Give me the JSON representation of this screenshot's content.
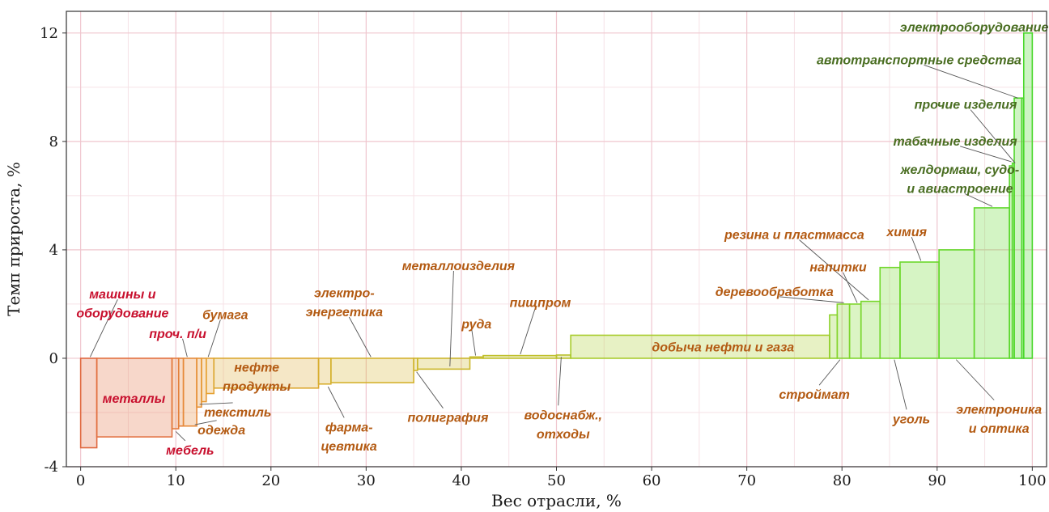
{
  "chart_data": {
    "type": "bar",
    "title": "",
    "xlabel": "Вес отрасли, %",
    "ylabel": "Темп прироста, %",
    "xlim": [
      -1.5,
      101.5
    ],
    "ylim": [
      -4,
      12.8
    ],
    "x_ticks": [
      "0",
      "10",
      "20",
      "30",
      "40",
      "50",
      "60",
      "70",
      "80",
      "90",
      "100"
    ],
    "y_ticks": [
      "-4",
      "0",
      "4",
      "8",
      "12"
    ],
    "grid": true,
    "bars": [
      {
        "name": "машины и оборудование",
        "x0": 0.0,
        "x1": 1.7,
        "value": -3.3,
        "color": "#e06840"
      },
      {
        "name": "металлы",
        "x0": 1.7,
        "x1": 9.6,
        "value": -2.9,
        "color": "#e27040"
      },
      {
        "name": "мебель",
        "x0": 9.6,
        "x1": 10.3,
        "value": -2.6,
        "color": "#e47a3c"
      },
      {
        "name": "проч. п/и",
        "x0": 10.3,
        "x1": 10.8,
        "value": -2.5,
        "color": "#e4803a"
      },
      {
        "name": "одежда",
        "x0": 10.8,
        "x1": 12.2,
        "value": -2.5,
        "color": "#e68a3a"
      },
      {
        "name": "текстиль",
        "x0": 12.2,
        "x1": 12.7,
        "value": -1.8,
        "color": "#e69238"
      },
      {
        "name": "",
        "x0": 12.7,
        "x1": 13.2,
        "value": -1.6,
        "color": "#e69a36"
      },
      {
        "name": "бумага",
        "x0": 13.2,
        "x1": 14.0,
        "value": -1.3,
        "color": "#e6a234"
      },
      {
        "name": "нефтепродукты",
        "x0": 14.0,
        "x1": 25.0,
        "value": -1.1,
        "color": "#dca832"
      },
      {
        "name": "фармацевтика",
        "x0": 25.0,
        "x1": 26.3,
        "value": -0.95,
        "color": "#d8ae30"
      },
      {
        "name": "электроэнергетика",
        "x0": 26.3,
        "x1": 35.0,
        "value": -0.9,
        "color": "#d4b22e"
      },
      {
        "name": "полиграфия",
        "x0": 35.0,
        "x1": 35.4,
        "value": -0.45,
        "color": "#d0b42c"
      },
      {
        "name": "металлоизделия",
        "x0": 35.4,
        "x1": 40.9,
        "value": -0.4,
        "color": "#ccb82c"
      },
      {
        "name": "руда",
        "x0": 40.9,
        "x1": 42.3,
        "value": 0.05,
        "color": "#c6bc2c"
      },
      {
        "name": "пищпром",
        "x0": 42.3,
        "x1": 50.0,
        "value": 0.1,
        "color": "#c0c02c"
      },
      {
        "name": "водоснабж., отходы",
        "x0": 50.0,
        "x1": 51.5,
        "value": 0.12,
        "color": "#b8c02c"
      },
      {
        "name": "добыча нефти и газа",
        "x0": 51.5,
        "x1": 78.7,
        "value": 0.85,
        "color": "#a8cc2c"
      },
      {
        "name": "",
        "x0": 78.7,
        "x1": 79.5,
        "value": 1.6,
        "color": "#8ed22c"
      },
      {
        "name": "деревообработка",
        "x0": 79.5,
        "x1": 80.8,
        "value": 2.0,
        "color": "#84d42c"
      },
      {
        "name": "напитки",
        "x0": 80.8,
        "x1": 82.0,
        "value": 2.0,
        "color": "#7ed62c"
      },
      {
        "name": "резина и пластмасса",
        "x0": 82.0,
        "x1": 84.0,
        "value": 2.1,
        "color": "#78d62c"
      },
      {
        "name": "стройматериалы",
        "x0": 84.0,
        "x1": 86.1,
        "value": 3.35,
        "color": "#72d82c"
      },
      {
        "name": "химия",
        "x0": 86.1,
        "x1": 90.2,
        "value": 3.55,
        "color": "#6cd82c"
      },
      {
        "name": "уголь",
        "x0": 90.2,
        "x1": 93.9,
        "value": 4.0,
        "color": "#66d82c"
      },
      {
        "name": "электроника и оптика",
        "x0": 93.9,
        "x1": 97.6,
        "value": 5.55,
        "color": "#60d82c"
      },
      {
        "name": "железнодорожное, судо- и авиастроение",
        "x0": 97.6,
        "x1": 97.9,
        "value": 7.1,
        "color": "#5ad82c"
      },
      {
        "name": "табачные изделия",
        "x0": 97.9,
        "x1": 98.1,
        "value": 7.2,
        "color": "#56d82c"
      },
      {
        "name": "прочие изделия",
        "x0": 98.1,
        "x1": 98.9,
        "value": 9.6,
        "color": "#52d82c"
      },
      {
        "name": "автотранспортные средства",
        "x0": 98.9,
        "x1": 99.1,
        "value": 9.6,
        "color": "#4ed82c"
      },
      {
        "name": "электрооборудование",
        "x0": 99.1,
        "x1": 100.0,
        "value": 12.0,
        "color": "#4ad82c"
      }
    ],
    "labels": [
      {
        "text": "машины и",
        "x": 4.4,
        "y": 2.35,
        "color": "#c8102e",
        "lead": [
          1.0,
          0.05
        ]
      },
      {
        "text": "оборудование",
        "x": 4.4,
        "y": 1.65,
        "color": "#c8102e"
      },
      {
        "text": "металлы",
        "x": 5.6,
        "y": -1.5,
        "color": "#c8102e"
      },
      {
        "text": "проч. п/и",
        "x": 10.2,
        "y": 0.9,
        "color": "#c8102e",
        "lead": [
          11.2,
          0.05
        ]
      },
      {
        "text": "мебель",
        "x": 11.5,
        "y": -3.4,
        "color": "#c8102e",
        "lead": [
          10.0,
          -2.7
        ]
      },
      {
        "text": "бумага",
        "x": 15.2,
        "y": 1.6,
        "color": "#b35a12",
        "lead": [
          13.4,
          0.05
        ]
      },
      {
        "text": "текстиль",
        "x": 16.5,
        "y": -2.0,
        "color": "#b35a12",
        "lead": [
          12.5,
          -1.7
        ]
      },
      {
        "text": "одежда",
        "x": 14.8,
        "y": -2.65,
        "color": "#b35a12",
        "lead": [
          12.0,
          -2.45
        ]
      },
      {
        "text": "нефте",
        "x": 18.5,
        "y": -0.35,
        "color": "#b35a12"
      },
      {
        "text": "продукты",
        "x": 18.5,
        "y": -1.05,
        "color": "#b35a12"
      },
      {
        "text": "электро-",
        "x": 27.7,
        "y": 2.4,
        "color": "#b35a12"
      },
      {
        "text": "энергетика",
        "x": 27.7,
        "y": 1.7,
        "color": "#b35a12",
        "lead": [
          30.5,
          0.05
        ]
      },
      {
        "text": "фарма-",
        "x": 28.2,
        "y": -2.55,
        "color": "#b35a12",
        "lead": [
          26.0,
          -1.05
        ]
      },
      {
        "text": "цевтика",
        "x": 28.2,
        "y": -3.25,
        "color": "#b35a12"
      },
      {
        "text": "металлоизделия",
        "x": 39.7,
        "y": 3.4,
        "color": "#b35a12",
        "lead": [
          38.8,
          -0.3
        ]
      },
      {
        "text": "полиграфия",
        "x": 38.6,
        "y": -2.2,
        "color": "#b35a12",
        "lead": [
          35.3,
          -0.5
        ]
      },
      {
        "text": "руда",
        "x": 41.6,
        "y": 1.25,
        "color": "#b35a12",
        "lead": [
          41.5,
          0.1
        ]
      },
      {
        "text": "пищпром",
        "x": 48.3,
        "y": 2.05,
        "color": "#b35a12",
        "lead": [
          46.2,
          0.15
        ]
      },
      {
        "text": "водоснабж.,",
        "x": 50.7,
        "y": -2.1,
        "color": "#b35a12",
        "lead": [
          50.5,
          0.05
        ]
      },
      {
        "text": "отходы",
        "x": 50.7,
        "y": -2.8,
        "color": "#b35a12"
      },
      {
        "text": "добыча нефти и газа",
        "x": 67.5,
        "y": 0.4,
        "color": "#b35a12"
      },
      {
        "text": "резина и пластмасса",
        "x": 75.0,
        "y": 4.55,
        "color": "#b35a12",
        "lead": [
          82.8,
          2.15
        ]
      },
      {
        "text": "напитки",
        "x": 79.6,
        "y": 3.35,
        "color": "#b35a12",
        "lead": [
          81.6,
          2.05
        ]
      },
      {
        "text": "деревообработка",
        "x": 72.9,
        "y": 2.45,
        "color": "#b35a12",
        "lead": [
          80.2,
          2.05
        ]
      },
      {
        "text": "строймат",
        "x": 77.1,
        "y": -1.35,
        "color": "#b35a12",
        "lead": [
          79.8,
          -0.05
        ]
      },
      {
        "text": "уголь",
        "x": 87.3,
        "y": -2.25,
        "color": "#b35a12",
        "lead": [
          85.5,
          -0.05
        ]
      },
      {
        "text": "химия",
        "x": 86.8,
        "y": 4.65,
        "color": "#b35a12",
        "lead": [
          88.3,
          3.6
        ]
      },
      {
        "text": "электроника",
        "x": 96.5,
        "y": -1.9,
        "color": "#b35a12",
        "lead": [
          92.0,
          -0.05
        ]
      },
      {
        "text": "и оптика",
        "x": 96.5,
        "y": -2.6,
        "color": "#b35a12"
      },
      {
        "text": "желдормаш, судо-",
        "x": 92.4,
        "y": 6.95,
        "color": "#4a6e22"
      },
      {
        "text": "и авиастроение",
        "x": 92.4,
        "y": 6.25,
        "color": "#4a6e22",
        "lead": [
          95.8,
          5.6
        ]
      },
      {
        "text": "табачные изделия",
        "x": 91.9,
        "y": 8.0,
        "color": "#4a6e22",
        "lead": [
          97.8,
          7.25
        ]
      },
      {
        "text": "прочие изделия",
        "x": 93.0,
        "y": 9.35,
        "color": "#4a6e22",
        "lead": [
          98.2,
          7.2
        ]
      },
      {
        "text": "автотранспортные средства",
        "x": 88.1,
        "y": 11.0,
        "color": "#4a6e22",
        "lead": [
          98.5,
          9.6
        ]
      },
      {
        "text": "электрооборудование",
        "x": 93.9,
        "y": 12.2,
        "color": "#4a6e22"
      }
    ]
  }
}
